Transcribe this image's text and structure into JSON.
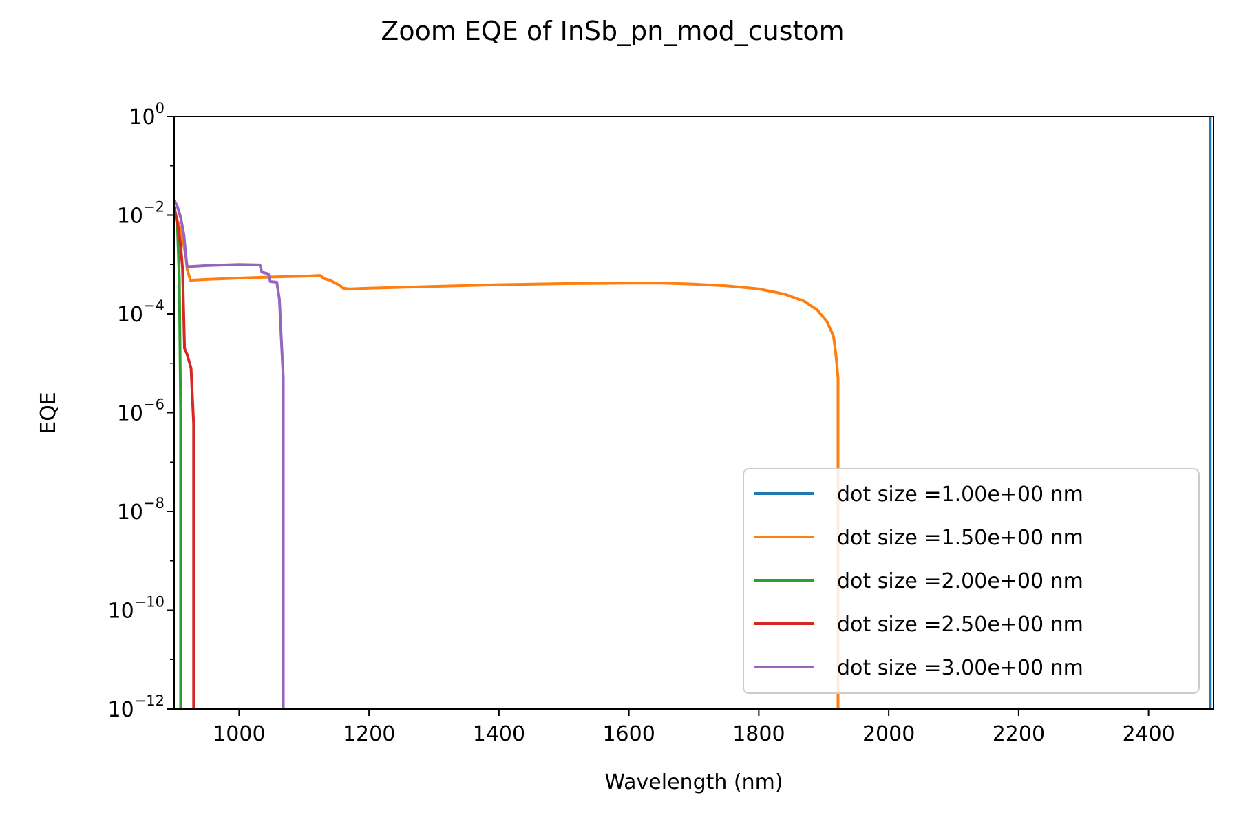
{
  "chart_data": {
    "type": "line",
    "title": "Zoom EQE of InSb_pn_mod_custom",
    "xlabel": "Wavelength (nm)",
    "ylabel": "EQE",
    "xlim": [
      900,
      2500
    ],
    "ylim": [
      1e-12,
      1
    ],
    "yscale": "log",
    "grid": false,
    "legend_placement": "lower right",
    "xticks": [
      1000,
      1200,
      1400,
      1600,
      1800,
      2000,
      2200,
      2400
    ],
    "yticks": [
      {
        "value": 1e-12,
        "base": "10",
        "exp": "−12"
      },
      {
        "value": 1e-10,
        "base": "10",
        "exp": "−10"
      },
      {
        "value": 1e-08,
        "base": "10",
        "exp": "−8"
      },
      {
        "value": 1e-06,
        "base": "10",
        "exp": "−6"
      },
      {
        "value": 0.0001,
        "base": "10",
        "exp": "−4"
      },
      {
        "value": 0.01,
        "base": "10",
        "exp": "−2"
      },
      {
        "value": 1,
        "base": "10",
        "exp": "0"
      }
    ],
    "series": [
      {
        "name": "dot size =1.00e+00 nm",
        "color": "#1f77b4",
        "points": [
          [
            2495,
            1e-12
          ],
          [
            2495,
            1
          ]
        ]
      },
      {
        "name": "dot size =1.50e+00 nm",
        "color": "#ff7f0e",
        "points": [
          [
            900,
            0.012
          ],
          [
            910,
            0.005
          ],
          [
            918,
            0.0015
          ],
          [
            920,
            0.0008
          ],
          [
            925,
            0.00048
          ],
          [
            950,
            0.0005
          ],
          [
            1000,
            0.00053
          ],
          [
            1050,
            0.00056
          ],
          [
            1100,
            0.00058
          ],
          [
            1125,
            0.0006
          ],
          [
            1130,
            0.00052
          ],
          [
            1140,
            0.00048
          ],
          [
            1148,
            0.00042
          ],
          [
            1155,
            0.00038
          ],
          [
            1160,
            0.00033
          ],
          [
            1170,
            0.00032
          ],
          [
            1200,
            0.00033
          ],
          [
            1300,
            0.00036
          ],
          [
            1400,
            0.00039
          ],
          [
            1500,
            0.00041
          ],
          [
            1600,
            0.00042
          ],
          [
            1650,
            0.00042
          ],
          [
            1700,
            0.0004
          ],
          [
            1750,
            0.00037
          ],
          [
            1800,
            0.00032
          ],
          [
            1840,
            0.00025
          ],
          [
            1870,
            0.00018
          ],
          [
            1890,
            0.00012
          ],
          [
            1905,
            7e-05
          ],
          [
            1915,
            3.5e-05
          ],
          [
            1918,
            1.8e-05
          ],
          [
            1920,
            1e-05
          ],
          [
            1922,
            5e-06
          ],
          [
            1922,
            1e-12
          ]
        ]
      },
      {
        "name": "dot size =2.00e+00 nm",
        "color": "#2ca02c",
        "points": [
          [
            900,
            0.015
          ],
          [
            905,
            0.006
          ],
          [
            908,
            0.0005
          ],
          [
            910,
            1e-06
          ],
          [
            910,
            1e-12
          ]
        ]
      },
      {
        "name": "dot size =2.50e+00 nm",
        "color": "#d62728",
        "points": [
          [
            900,
            0.015
          ],
          [
            905,
            0.007
          ],
          [
            910,
            0.0025
          ],
          [
            913,
            0.0008
          ],
          [
            916,
            2e-05
          ],
          [
            920,
            1.5e-05
          ],
          [
            926,
            8e-06
          ],
          [
            930,
            6e-07
          ],
          [
            930,
            1e-12
          ]
        ]
      },
      {
        "name": "dot size =3.00e+00 nm",
        "color": "#9467bd",
        "points": [
          [
            900,
            0.02
          ],
          [
            905,
            0.015
          ],
          [
            910,
            0.009
          ],
          [
            915,
            0.004
          ],
          [
            918,
            0.0015
          ],
          [
            920,
            0.0009
          ],
          [
            950,
            0.00095
          ],
          [
            1000,
            0.001
          ],
          [
            1032,
            0.00098
          ],
          [
            1035,
            0.0007
          ],
          [
            1045,
            0.00065
          ],
          [
            1048,
            0.00045
          ],
          [
            1058,
            0.00044
          ],
          [
            1062,
            0.0002
          ],
          [
            1065,
            3e-05
          ],
          [
            1068,
            5e-06
          ],
          [
            1068,
            1e-12
          ]
        ]
      }
    ]
  }
}
